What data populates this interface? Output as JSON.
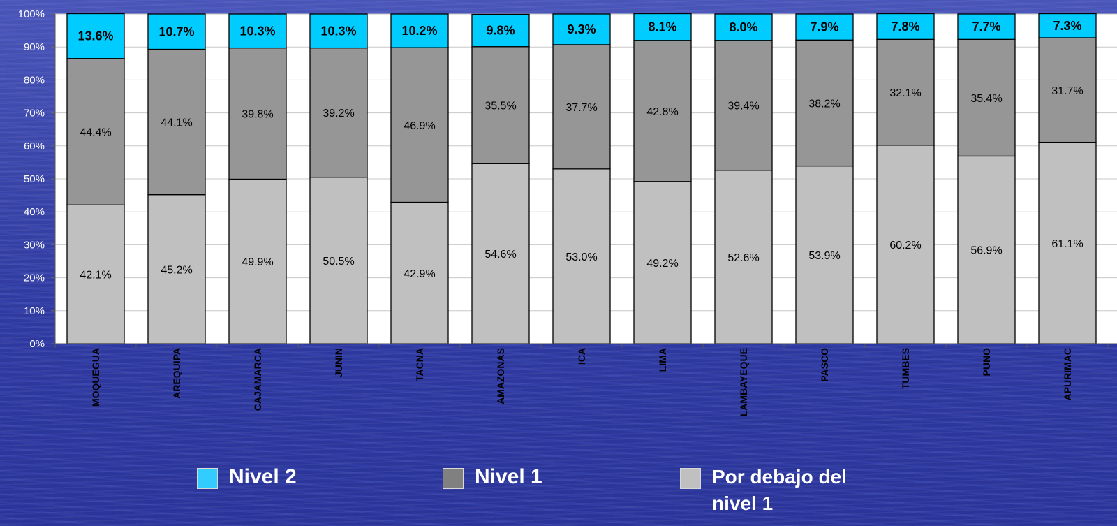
{
  "chart_data": {
    "type": "bar",
    "stacked": true,
    "percent_stacked": true,
    "categories": [
      "MOQUEGUA",
      "AREQUIPA",
      "CAJAMARCA",
      "JUNIN",
      "TACNA",
      "AMAZONAS",
      "ICA",
      "LIMA",
      "LAMBAYEQUE",
      "PASCO",
      "TUMBES",
      "PUNO",
      "APURIMAC"
    ],
    "series": [
      {
        "name": "Por debajo del nivel 1",
        "color": "#c0c0c0",
        "values": [
          42.1,
          45.2,
          49.9,
          50.5,
          42.9,
          54.6,
          53.0,
          49.2,
          52.6,
          53.9,
          60.2,
          56.9,
          61.1
        ]
      },
      {
        "name": "Nivel 1",
        "color": "#969696",
        "values": [
          44.4,
          44.1,
          39.8,
          39.2,
          46.9,
          35.5,
          37.7,
          42.8,
          39.4,
          38.2,
          32.1,
          35.4,
          31.7
        ]
      },
      {
        "name": "Nivel 2",
        "color": "#00ccff",
        "values": [
          13.6,
          10.7,
          10.3,
          10.3,
          10.2,
          9.8,
          9.3,
          8.1,
          8.0,
          7.9,
          7.8,
          7.7,
          7.3
        ]
      }
    ],
    "data_labels": {
      "Por debajo del nivel 1": [
        "42.1%",
        "45.2%",
        "49.9%",
        "50.5%",
        "42.9%",
        "54.6%",
        "53.0%",
        "49.2%",
        "52.6%",
        "53.9%",
        "60.2%",
        "56.9%",
        "61.1%"
      ],
      "Nivel 1": [
        "44.4%",
        "44.1%",
        "39.8%",
        "39.2%",
        "46.9%",
        "35.5%",
        "37.7%",
        "42.8%",
        "39.4%",
        "38.2%",
        "32.1%",
        "35.4%",
        "31.7%"
      ],
      "Nivel 2": [
        "13.6%",
        "10.7%",
        "10.3%",
        "10.3%",
        "10.2%",
        "9.8%",
        "9.3%",
        "8.1%",
        "8.0%",
        "7.9%",
        "7.8%",
        "7.7%",
        "7.3%"
      ]
    },
    "ylim": [
      0,
      100
    ],
    "yticks": [
      "0%",
      "10%",
      "20%",
      "30%",
      "40%",
      "50%",
      "60%",
      "70%",
      "80%",
      "90%",
      "100%"
    ],
    "grid": true,
    "legend_position": "bottom",
    "title": "",
    "xlabel": "",
    "ylabel": ""
  },
  "legend": {
    "items": [
      {
        "label": "Nivel 2",
        "color": "#33ccff"
      },
      {
        "label": "Nivel 1",
        "color": "#808080"
      },
      {
        "label": "Por debajo del nivel 1",
        "color": "#c0c0c0"
      }
    ]
  },
  "colors": {
    "plot_background": "#ffffff",
    "gridline": "#c8c8c8",
    "bar_outline": "#000000",
    "page_text": "#ffffff"
  }
}
